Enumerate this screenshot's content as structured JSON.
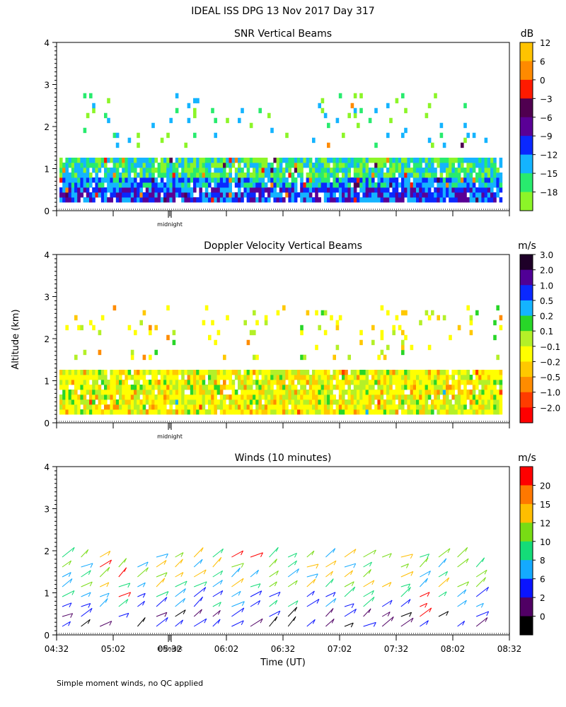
{
  "figure": {
    "title": "IDEAL ISS DPG  13 Nov 2017 Day 317",
    "ylabel": "Altitude (km)",
    "xlabel": "Time (UT)",
    "footnote": "Simple moment winds, no QC applied",
    "midnight_label": "midnight"
  },
  "chart_data": [
    {
      "type": "heatmap",
      "title": "SNR Vertical Beams",
      "colorbar_unit": "dB",
      "colorbar_ticks": [
        "12",
        "6",
        "0",
        "−3",
        "−6",
        "−9",
        "−12",
        "−15",
        "−18"
      ],
      "colorbar_colors": [
        "#ffc300",
        "#ff8a00",
        "#ff1a00",
        "#500050",
        "#5a0096",
        "#0a28ff",
        "#14b4ff",
        "#28eb6e",
        "#8cf528"
      ],
      "yticks": [
        "0",
        "1",
        "2",
        "3",
        "4"
      ],
      "ylim": [
        0,
        4
      ],
      "xlim": [
        "04:32",
        "08:32"
      ],
      "range_km": [
        0.2,
        2.7
      ]
    },
    {
      "type": "heatmap",
      "title": "Doppler Velocity Vertical Beams",
      "colorbar_unit": "m/s",
      "colorbar_ticks": [
        "3.0",
        "2.0",
        "1.0",
        "0.5",
        "0.2",
        "0.1",
        "−0.1",
        "−0.2",
        "−0.5",
        "−1.0",
        "−2.0"
      ],
      "colorbar_colors": [
        "#1e0028",
        "#500096",
        "#0a28ff",
        "#14b4ff",
        "#28d628",
        "#b4f028",
        "#ffff00",
        "#ffc800",
        "#ff8c00",
        "#ff3c00",
        "#ff0000"
      ],
      "yticks": [
        "0",
        "1",
        "2",
        "3",
        "4"
      ],
      "ylim": [
        0,
        4
      ],
      "xlim": [
        "04:32",
        "08:32"
      ]
    },
    {
      "type": "scatter",
      "title": "Winds (10 minutes)",
      "colorbar_unit": "m/s",
      "colorbar_ticks": [
        "20",
        "15",
        "12",
        "10",
        "8",
        "6",
        "2",
        "0"
      ],
      "colorbar_colors": [
        "#ff0000",
        "#ff7800",
        "#ffbe00",
        "#78dc14",
        "#14dc78",
        "#14aaff",
        "#0a14ff",
        "#500064",
        "#000000"
      ],
      "yticks": [
        "0",
        "1",
        "2",
        "3",
        "4"
      ],
      "ylim": [
        0,
        4
      ],
      "xticks": [
        "04:32",
        "05:02",
        "05:32",
        "06:02",
        "06:32",
        "07:02",
        "07:32",
        "08:02",
        "08:32"
      ],
      "xlim": [
        "04:32",
        "08:32"
      ],
      "midnight_time": "05:32"
    }
  ]
}
